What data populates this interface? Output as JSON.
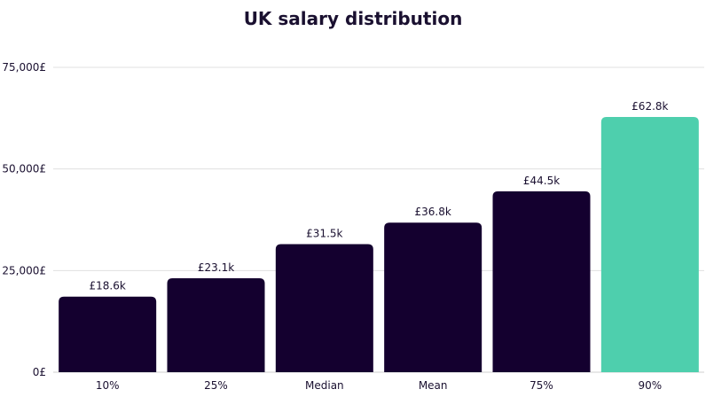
{
  "chart_data": {
    "type": "bar",
    "title": "UK salary distribution",
    "xlabel": "",
    "ylabel": "",
    "categories": [
      "10%",
      "25%",
      "Median",
      "Mean",
      "75%",
      "90%"
    ],
    "values": [
      18600,
      23100,
      31500,
      36800,
      44500,
      62800
    ],
    "data_labels": [
      "£18.6k",
      "£23.1k",
      "£31.5k",
      "£36.8k",
      "£44.5k",
      "£62.8k"
    ],
    "ylim": [
      0,
      75000
    ],
    "y_ticks": [
      0,
      25000,
      50000,
      75000
    ],
    "y_tick_labels": [
      "0£",
      "25,000£",
      "50,000£",
      "75,000£"
    ],
    "grid": true,
    "legend": "none",
    "colors": {
      "bar": "#14002f",
      "highlight_bar": "#4ecfad",
      "text": "#1a1030",
      "grid": "#e0e0e0"
    },
    "highlight_index": 5
  }
}
